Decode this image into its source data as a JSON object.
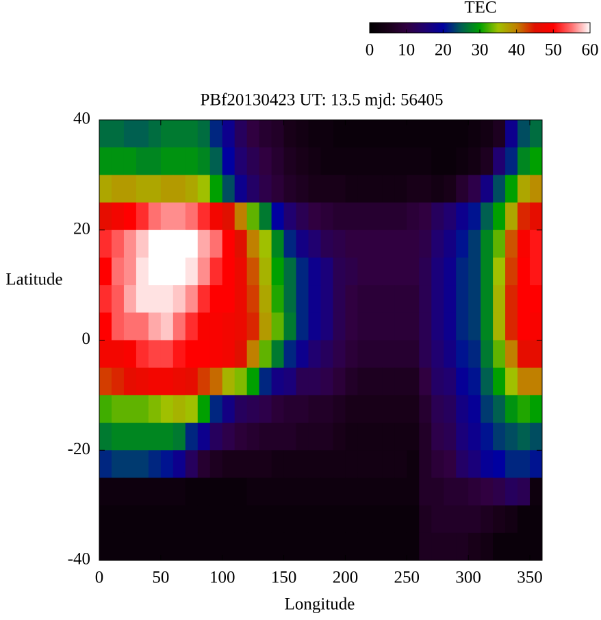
{
  "chart_data": {
    "type": "heatmap",
    "title": "PBf20130423  UT: 13.5  mjd: 56405",
    "xlabel": "Longitude",
    "ylabel": "Latitude",
    "colorbar_label": "TEC",
    "xlim": [
      0,
      360
    ],
    "xticks": [
      0,
      50,
      100,
      150,
      200,
      250,
      300,
      350
    ],
    "ylim": [
      -40,
      40
    ],
    "yticks": [
      -40,
      -20,
      0,
      20,
      40
    ],
    "zlim": [
      0,
      60
    ],
    "zticks": [
      0,
      10,
      20,
      30,
      40,
      50,
      60
    ],
    "colorscale": [
      "#000000",
      "#180018",
      "#300040",
      "#200070",
      "#0000a0",
      "#006050",
      "#00a000",
      "#a0c000",
      "#c08000",
      "#e01000",
      "#ff0000",
      "#ff7070",
      "#ffffff"
    ],
    "x": [
      5,
      15,
      25,
      35,
      45,
      55,
      65,
      75,
      85,
      95,
      105,
      115,
      125,
      135,
      145,
      155,
      165,
      175,
      185,
      195,
      205,
      215,
      225,
      235,
      245,
      255,
      265,
      275,
      285,
      295,
      305,
      315,
      325,
      335,
      345,
      355
    ],
    "y": [
      37.5,
      32.5,
      27.5,
      22.5,
      17.5,
      12.5,
      7.5,
      2.5,
      -2.5,
      -7.5,
      -12.5,
      -17.5,
      -22.5,
      -27.5,
      -32.5,
      -37.5
    ],
    "z": [
      [
        26,
        26,
        25,
        25,
        26,
        27,
        27,
        27,
        26,
        22,
        18,
        13,
        10,
        8,
        7,
        5,
        4,
        3,
        3,
        2,
        2,
        2,
        2,
        2,
        2,
        2,
        2,
        2,
        2,
        2,
        3,
        4,
        6,
        18,
        24,
        26
      ],
      [
        29,
        29,
        29,
        28,
        28,
        29,
        29,
        29,
        28,
        25,
        20,
        15,
        12,
        10,
        8,
        6,
        5,
        4,
        3,
        3,
        3,
        3,
        3,
        3,
        3,
        3,
        3,
        2,
        2,
        3,
        4,
        6,
        15,
        22,
        28,
        30
      ],
      [
        37,
        38,
        38,
        37,
        37,
        38,
        38,
        37,
        35,
        30,
        24,
        18,
        14,
        11,
        9,
        7,
        6,
        5,
        5,
        5,
        4,
        4,
        4,
        4,
        4,
        5,
        5,
        4,
        5,
        8,
        11,
        17,
        24,
        30,
        37,
        39
      ],
      [
        46,
        48,
        50,
        52,
        55,
        56,
        56,
        55,
        52,
        48,
        45,
        40,
        33,
        27,
        20,
        15,
        12,
        10,
        9,
        8,
        8,
        8,
        8,
        8,
        8,
        9,
        10,
        13,
        15,
        18,
        21,
        25,
        30,
        37,
        44,
        46
      ],
      [
        52,
        54,
        56,
        58,
        60,
        60,
        60,
        60,
        57,
        55,
        50,
        45,
        40,
        35,
        28,
        22,
        17,
        15,
        12,
        11,
        10,
        10,
        10,
        10,
        10,
        10,
        11,
        15,
        17,
        21,
        23,
        28,
        33,
        42,
        49,
        51
      ],
      [
        50,
        55,
        56,
        59,
        60,
        60,
        60,
        59,
        56,
        52,
        50,
        47,
        42,
        36,
        30,
        26,
        22,
        18,
        16,
        12,
        11,
        10,
        10,
        10,
        10,
        10,
        12,
        16,
        18,
        22,
        23,
        28,
        35,
        43,
        50,
        51
      ],
      [
        52,
        54,
        57,
        59,
        59,
        59,
        58,
        56,
        52,
        50,
        50,
        47,
        43,
        37,
        31,
        26,
        22,
        18,
        16,
        12,
        10,
        9,
        9,
        9,
        9,
        9,
        12,
        16,
        18,
        22,
        23,
        28,
        36,
        44,
        50,
        50
      ],
      [
        50,
        54,
        55,
        55,
        57,
        58,
        55,
        52,
        49,
        49,
        48,
        47,
        44,
        38,
        33,
        27,
        22,
        18,
        16,
        12,
        10,
        9,
        9,
        9,
        9,
        9,
        12,
        16,
        18,
        22,
        23,
        28,
        36,
        44,
        50,
        49
      ],
      [
        48,
        48,
        49,
        52,
        53,
        53,
        51,
        50,
        50,
        49,
        48,
        45,
        40,
        33,
        27,
        22,
        18,
        15,
        13,
        11,
        9,
        8,
        8,
        8,
        8,
        8,
        12,
        15,
        17,
        21,
        22,
        27,
        33,
        40,
        46,
        46
      ],
      [
        43,
        44,
        46,
        47,
        48,
        48,
        47,
        46,
        43,
        41,
        36,
        34,
        30,
        22,
        17,
        16,
        12,
        12,
        11,
        9,
        7,
        6,
        6,
        6,
        6,
        6,
        10,
        14,
        15,
        19,
        21,
        25,
        30,
        35,
        40,
        40
      ],
      [
        32,
        33,
        33,
        33,
        34,
        35,
        36,
        35,
        30,
        22,
        17,
        13,
        12,
        11,
        9,
        8,
        8,
        7,
        7,
        6,
        5,
        5,
        5,
        5,
        5,
        5,
        8,
        12,
        13,
        17,
        19,
        23,
        25,
        29,
        31,
        30
      ],
      [
        27,
        28,
        28,
        28,
        28,
        28,
        27,
        22,
        18,
        13,
        11,
        9,
        8,
        7,
        7,
        7,
        6,
        6,
        6,
        5,
        4,
        4,
        4,
        4,
        4,
        4,
        7,
        11,
        12,
        16,
        18,
        21,
        23,
        24,
        25,
        24
      ],
      [
        22,
        23,
        23,
        23,
        22,
        21,
        18,
        13,
        8,
        6,
        5,
        5,
        5,
        5,
        4,
        4,
        4,
        4,
        4,
        4,
        4,
        4,
        4,
        4,
        4,
        3,
        7,
        9,
        10,
        14,
        16,
        19,
        20,
        22,
        22,
        21
      ],
      [
        3,
        3,
        3,
        3,
        3,
        3,
        3,
        2,
        2,
        2,
        2,
        2,
        3,
        3,
        3,
        3,
        3,
        3,
        3,
        3,
        3,
        3,
        3,
        3,
        3,
        3,
        7,
        7,
        8,
        8,
        9,
        10,
        11,
        13,
        12,
        3
      ],
      [
        2,
        2,
        2,
        2,
        2,
        2,
        2,
        2,
        2,
        2,
        2,
        2,
        2,
        2,
        2,
        2,
        2,
        2,
        2,
        2,
        2,
        2,
        2,
        2,
        2,
        2,
        6,
        7,
        7,
        7,
        7,
        6,
        5,
        4,
        2,
        2
      ],
      [
        2,
        2,
        2,
        2,
        2,
        2,
        2,
        2,
        2,
        2,
        2,
        2,
        2,
        2,
        2,
        2,
        2,
        2,
        2,
        2,
        2,
        2,
        2,
        2,
        2,
        2,
        6,
        6,
        6,
        6,
        5,
        4,
        2,
        2,
        2,
        2
      ]
    ]
  }
}
